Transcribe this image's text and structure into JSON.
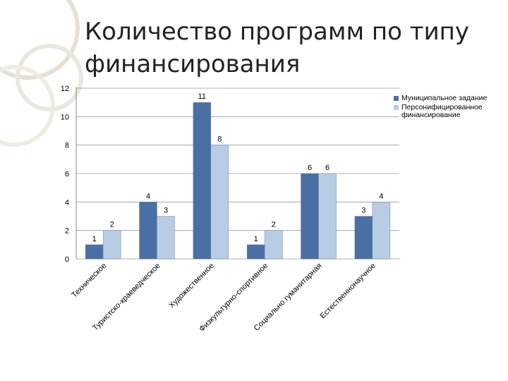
{
  "chart_data": {
    "type": "bar",
    "title": "Количество программ по типу финансирования",
    "categories": [
      "Техническое",
      "Туристско-краеведческое",
      "Художественное",
      "Физкультурно-спортивное",
      "Социально гуманитарная",
      "Естественнонаучное"
    ],
    "series": [
      {
        "name": "Муниципальное задание",
        "color": "#4a6fa5",
        "values": [
          1,
          4,
          11,
          1,
          6,
          3
        ]
      },
      {
        "name": "Персонифицированное финансирование",
        "color": "#b8cce4",
        "values": [
          2,
          3,
          8,
          2,
          6,
          4
        ]
      }
    ],
    "ylim": [
      0,
      12
    ],
    "yticks": [
      0,
      2,
      4,
      6,
      8,
      10,
      12
    ],
    "grid": true,
    "legend": "right"
  }
}
